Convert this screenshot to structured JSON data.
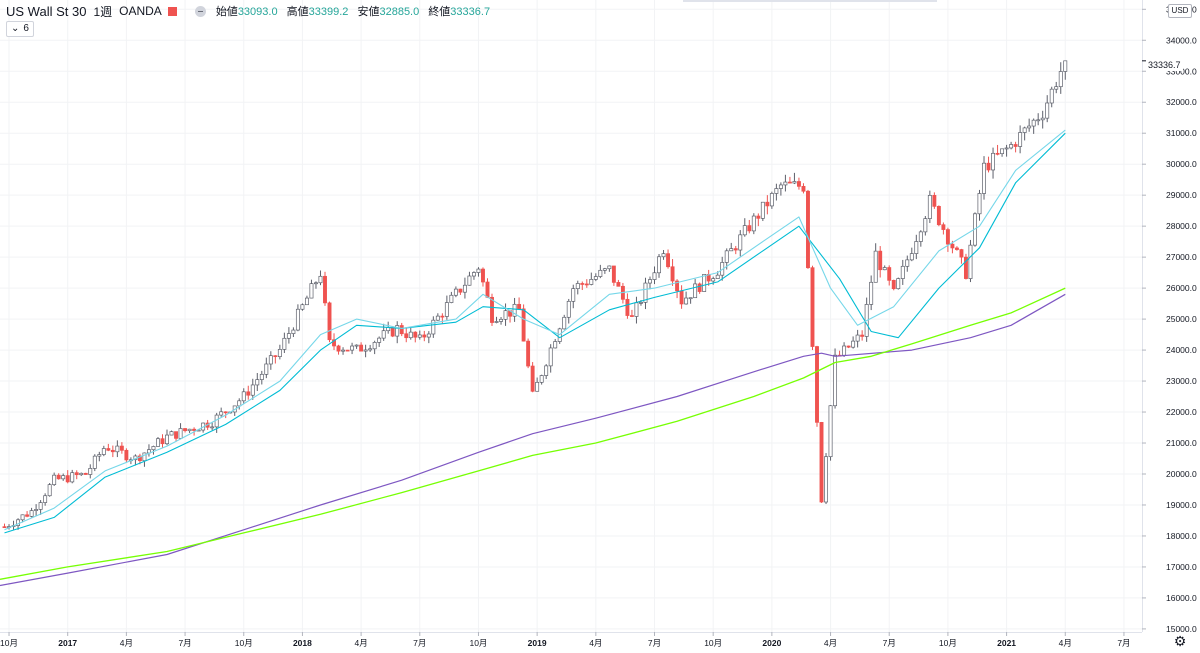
{
  "header": {
    "symbol": "US Wall St 30",
    "interval": "1週",
    "broker": "OANDA",
    "open_label": "始値",
    "open_value": "33093.0",
    "high_label": "高値",
    "high_value": "33399.2",
    "low_label": "安値",
    "low_value": "32885.0",
    "close_label": "終値",
    "close_value": "33336.7"
  },
  "indicator_button": {
    "label": "6"
  },
  "price_axis": {
    "currency": "USD",
    "current_price": "33336.7"
  },
  "colors": {
    "up": "#26a69a",
    "down": "#ef5350",
    "candle_up_body": "#ffffff",
    "candle_outline": "#5d606b",
    "ma_fast": "#76d7e9",
    "ma_mid": "#00bcd4",
    "ma_200_purple": "#7e57c2",
    "ma_green": "#76ff03"
  },
  "chart_data": {
    "type": "candlestick",
    "timeframe": "weekly",
    "ylim": [
      14900,
      35300
    ],
    "y_ticks": [
      "15000.0",
      "16000.0",
      "17000.0",
      "18000.0",
      "19000.0",
      "20000.0",
      "21000.0",
      "22000.0",
      "23000.0",
      "24000.0",
      "25000.0",
      "26000.0",
      "27000.0",
      "28000.0",
      "29000.0",
      "30000.0",
      "31000.0",
      "32000.0",
      "33000.0",
      "34000.0",
      "35000.0"
    ],
    "x_ticks": [
      "10月",
      "2017",
      "4月",
      "7月",
      "10月",
      "2018",
      "4月",
      "7月",
      "10月",
      "2019",
      "4月",
      "7月",
      "10月",
      "2020",
      "4月",
      "7月",
      "10月",
      "2021",
      "4月",
      "7月"
    ],
    "x_range": [
      "2016-09-19",
      "2021-07-26"
    ],
    "close_path": [
      [
        "2016-09-26",
        18300
      ],
      [
        "2016-11-07",
        18800
      ],
      [
        "2016-12-12",
        19800
      ],
      [
        "2017-01-30",
        20000
      ],
      [
        "2017-03-01",
        20900
      ],
      [
        "2017-04-17",
        20500
      ],
      [
        "2017-06-05",
        21200
      ],
      [
        "2017-08-14",
        21700
      ],
      [
        "2017-10-02",
        22500
      ],
      [
        "2017-11-27",
        24000
      ],
      [
        "2018-01-29",
        26500
      ],
      [
        "2018-02-12",
        24200
      ],
      [
        "2018-03-26",
        24000
      ],
      [
        "2018-05-28",
        24700
      ],
      [
        "2018-07-02",
        24300
      ],
      [
        "2018-08-27",
        25800
      ],
      [
        "2018-10-01",
        26700
      ],
      [
        "2018-10-22",
        25100
      ],
      [
        "2018-12-03",
        25300
      ],
      [
        "2018-12-24",
        22500
      ],
      [
        "2019-02-25",
        26000
      ],
      [
        "2019-04-22",
        26600
      ],
      [
        "2019-05-27",
        25000
      ],
      [
        "2019-07-15",
        27300
      ],
      [
        "2019-08-12",
        25600
      ],
      [
        "2019-10-07",
        26600
      ],
      [
        "2019-11-25",
        28000
      ],
      [
        "2020-01-13",
        29300
      ],
      [
        "2020-02-17",
        29300
      ],
      [
        "2020-03-16",
        19200
      ],
      [
        "2020-04-06",
        23700
      ],
      [
        "2020-05-18",
        24500
      ],
      [
        "2020-06-08",
        27100
      ],
      [
        "2020-07-06",
        25800
      ],
      [
        "2020-08-31",
        28800
      ],
      [
        "2020-10-26",
        26500
      ],
      [
        "2020-11-23",
        29900
      ],
      [
        "2021-01-04",
        30600
      ],
      [
        "2021-02-22",
        31700
      ],
      [
        "2021-03-29",
        33336.7
      ]
    ],
    "ma_fast_path": [
      [
        "2016-09-26",
        18200
      ],
      [
        "2016-12-12",
        18900
      ],
      [
        "2017-03-01",
        20100
      ],
      [
        "2017-06-05",
        20900
      ],
      [
        "2017-09-04",
        21900
      ],
      [
        "2017-11-27",
        23000
      ],
      [
        "2018-01-29",
        24500
      ],
      [
        "2018-03-26",
        25000
      ],
      [
        "2018-06-04",
        24700
      ],
      [
        "2018-08-27",
        25000
      ],
      [
        "2018-10-08",
        25800
      ],
      [
        "2018-12-10",
        25000
      ],
      [
        "2019-02-04",
        24500
      ],
      [
        "2019-04-22",
        25800
      ],
      [
        "2019-07-01",
        26000
      ],
      [
        "2019-10-07",
        26500
      ],
      [
        "2019-12-16",
        27500
      ],
      [
        "2020-02-10",
        28300
      ],
      [
        "2020-03-30",
        26000
      ],
      [
        "2020-05-11",
        24800
      ],
      [
        "2020-07-06",
        25400
      ],
      [
        "2020-09-14",
        27200
      ],
      [
        "2020-11-16",
        28000
      ],
      [
        "2021-01-11",
        29800
      ],
      [
        "2021-03-29",
        31100
      ]
    ],
    "ma_mid_path": [
      [
        "2016-09-26",
        18100
      ],
      [
        "2016-12-12",
        18600
      ],
      [
        "2017-03-01",
        19900
      ],
      [
        "2017-06-05",
        20700
      ],
      [
        "2017-09-04",
        21600
      ],
      [
        "2017-11-27",
        22700
      ],
      [
        "2018-01-29",
        24000
      ],
      [
        "2018-03-26",
        24800
      ],
      [
        "2018-06-04",
        24700
      ],
      [
        "2018-08-27",
        24900
      ],
      [
        "2018-10-08",
        25400
      ],
      [
        "2018-12-10",
        25300
      ],
      [
        "2019-02-04",
        24400
      ],
      [
        "2019-04-22",
        25300
      ],
      [
        "2019-07-01",
        25700
      ],
      [
        "2019-10-07",
        26200
      ],
      [
        "2019-12-16",
        27200
      ],
      [
        "2020-02-10",
        28000
      ],
      [
        "2020-04-13",
        26300
      ],
      [
        "2020-06-01",
        24600
      ],
      [
        "2020-07-13",
        24400
      ],
      [
        "2020-09-14",
        26000
      ],
      [
        "2020-11-16",
        27300
      ],
      [
        "2021-01-11",
        29400
      ],
      [
        "2021-03-29",
        31000
      ]
    ],
    "ma_purple_path": [
      [
        "2016-09-19",
        16400
      ],
      [
        "2017-01-02",
        16800
      ],
      [
        "2017-06-05",
        17400
      ],
      [
        "2017-10-02",
        18200
      ],
      [
        "2018-01-29",
        19000
      ],
      [
        "2018-06-04",
        19800
      ],
      [
        "2018-10-01",
        20700
      ],
      [
        "2018-12-24",
        21300
      ],
      [
        "2019-04-01",
        21800
      ],
      [
        "2019-08-05",
        22500
      ],
      [
        "2019-12-02",
        23300
      ],
      [
        "2020-02-17",
        23800
      ],
      [
        "2020-03-16",
        23900
      ],
      [
        "2020-04-06",
        23800
      ],
      [
        "2020-08-03",
        24000
      ],
      [
        "2020-11-02",
        24400
      ],
      [
        "2021-01-04",
        24800
      ],
      [
        "2021-03-29",
        25800
      ]
    ],
    "ma_green_path": [
      [
        "2016-09-19",
        16600
      ],
      [
        "2017-01-02",
        17000
      ],
      [
        "2017-06-05",
        17500
      ],
      [
        "2017-10-02",
        18100
      ],
      [
        "2018-01-29",
        18700
      ],
      [
        "2018-06-04",
        19400
      ],
      [
        "2018-10-01",
        20100
      ],
      [
        "2018-12-24",
        20600
      ],
      [
        "2019-04-01",
        21000
      ],
      [
        "2019-08-05",
        21700
      ],
      [
        "2019-12-02",
        22500
      ],
      [
        "2020-02-17",
        23100
      ],
      [
        "2020-04-06",
        23600
      ],
      [
        "2020-06-01",
        23800
      ],
      [
        "2020-08-03",
        24200
      ],
      [
        "2020-11-02",
        24800
      ],
      [
        "2021-01-04",
        25200
      ],
      [
        "2021-03-29",
        26000
      ]
    ]
  }
}
